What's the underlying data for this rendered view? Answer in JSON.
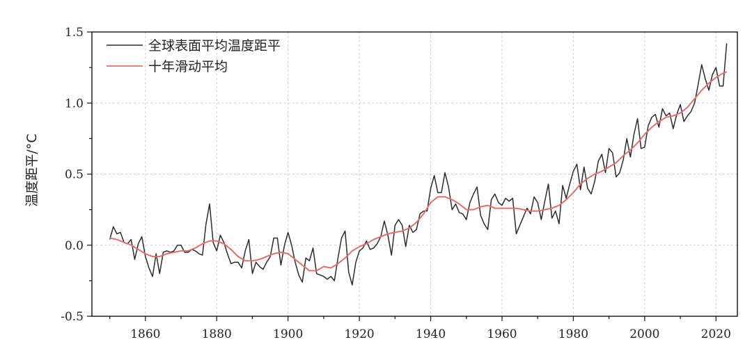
{
  "chart_data": {
    "type": "line",
    "title": "",
    "xlabel": "",
    "ylabel": "温度距平/°C",
    "xlim": [
      1845,
      2026
    ],
    "ylim": [
      -0.5,
      1.5
    ],
    "xticks": [
      1860,
      1880,
      1900,
      1920,
      1940,
      1960,
      1980,
      2000,
      2020
    ],
    "yticks": [
      -0.5,
      0.0,
      0.5,
      1.0,
      1.5
    ],
    "ytick_labels": [
      "-0.5",
      "0.0",
      "0.5",
      "1.0",
      "1.5"
    ],
    "grid": true,
    "legend_position": "top-left",
    "series": [
      {
        "name": "全球表面平均温度距平",
        "color": "#2b2b2b",
        "x": [
          1850,
          1851,
          1852,
          1853,
          1854,
          1855,
          1856,
          1857,
          1858,
          1859,
          1860,
          1861,
          1862,
          1863,
          1864,
          1865,
          1866,
          1867,
          1868,
          1869,
          1870,
          1871,
          1872,
          1873,
          1874,
          1875,
          1876,
          1877,
          1878,
          1879,
          1880,
          1881,
          1882,
          1883,
          1884,
          1885,
          1886,
          1887,
          1888,
          1889,
          1890,
          1891,
          1892,
          1893,
          1894,
          1895,
          1896,
          1897,
          1898,
          1899,
          1900,
          1901,
          1902,
          1903,
          1904,
          1905,
          1906,
          1907,
          1908,
          1909,
          1910,
          1911,
          1912,
          1913,
          1914,
          1915,
          1916,
          1917,
          1918,
          1919,
          1920,
          1921,
          1922,
          1923,
          1924,
          1925,
          1926,
          1927,
          1928,
          1929,
          1930,
          1931,
          1932,
          1933,
          1934,
          1935,
          1936,
          1937,
          1938,
          1939,
          1940,
          1941,
          1942,
          1943,
          1944,
          1945,
          1946,
          1947,
          1948,
          1949,
          1950,
          1951,
          1952,
          1953,
          1954,
          1955,
          1956,
          1957,
          1958,
          1959,
          1960,
          1961,
          1962,
          1963,
          1964,
          1965,
          1966,
          1967,
          1968,
          1969,
          1970,
          1971,
          1972,
          1973,
          1974,
          1975,
          1976,
          1977,
          1978,
          1979,
          1980,
          1981,
          1982,
          1983,
          1984,
          1985,
          1986,
          1987,
          1988,
          1989,
          1990,
          1991,
          1992,
          1993,
          1994,
          1995,
          1996,
          1997,
          1998,
          1999,
          2000,
          2001,
          2002,
          2003,
          2004,
          2005,
          2006,
          2007,
          2008,
          2009,
          2010,
          2011,
          2012,
          2013,
          2014,
          2015,
          2016,
          2017,
          2018,
          2019,
          2020,
          2021,
          2022,
          2023
        ],
        "values": [
          0.04,
          0.13,
          0.08,
          0.09,
          0.02,
          0.01,
          0.04,
          -0.1,
          0.01,
          0.06,
          -0.08,
          -0.16,
          -0.22,
          -0.06,
          -0.2,
          -0.05,
          -0.04,
          -0.05,
          -0.04,
          0.0,
          0.0,
          -0.05,
          -0.05,
          -0.03,
          -0.04,
          -0.06,
          -0.07,
          0.15,
          0.29,
          0.02,
          -0.04,
          0.07,
          0.02,
          -0.06,
          -0.13,
          -0.12,
          -0.12,
          -0.16,
          -0.04,
          0.04,
          -0.2,
          -0.12,
          -0.15,
          -0.17,
          -0.12,
          -0.08,
          0.05,
          0.05,
          -0.14,
          0.0,
          0.09,
          0.0,
          -0.12,
          -0.21,
          -0.26,
          -0.09,
          -0.11,
          -0.02,
          -0.2,
          -0.21,
          -0.22,
          -0.24,
          -0.22,
          -0.25,
          -0.09,
          0.05,
          0.1,
          -0.19,
          -0.28,
          -0.12,
          -0.04,
          -0.02,
          0.03,
          -0.03,
          -0.02,
          0.01,
          0.06,
          0.17,
          0.07,
          -0.07,
          0.14,
          0.18,
          0.14,
          -0.01,
          0.14,
          0.09,
          0.11,
          0.22,
          0.24,
          0.24,
          0.4,
          0.49,
          0.37,
          0.37,
          0.51,
          0.41,
          0.25,
          0.29,
          0.23,
          0.22,
          0.18,
          0.3,
          0.36,
          0.41,
          0.21,
          0.15,
          0.11,
          0.32,
          0.36,
          0.3,
          0.28,
          0.33,
          0.31,
          0.33,
          0.08,
          0.14,
          0.2,
          0.26,
          0.22,
          0.34,
          0.3,
          0.18,
          0.31,
          0.43,
          0.19,
          0.24,
          0.15,
          0.42,
          0.33,
          0.43,
          0.52,
          0.57,
          0.39,
          0.55,
          0.4,
          0.36,
          0.45,
          0.59,
          0.64,
          0.51,
          0.68,
          0.65,
          0.48,
          0.51,
          0.6,
          0.75,
          0.62,
          0.78,
          0.89,
          0.68,
          0.69,
          0.84,
          0.9,
          0.92,
          0.83,
          0.96,
          0.91,
          0.93,
          0.82,
          0.92,
          0.99,
          0.87,
          0.91,
          0.94,
          1.0,
          1.13,
          1.27,
          1.17,
          1.09,
          1.2,
          1.25,
          1.12,
          1.12,
          1.42
        ]
      },
      {
        "name": "十年滑动平均",
        "color": "#e0706a",
        "x": [
          1850,
          1852,
          1854,
          1856,
          1858,
          1860,
          1862,
          1864,
          1866,
          1868,
          1870,
          1872,
          1874,
          1876,
          1878,
          1880,
          1882,
          1884,
          1886,
          1888,
          1890,
          1892,
          1894,
          1896,
          1898,
          1900,
          1902,
          1904,
          1906,
          1908,
          1910,
          1912,
          1914,
          1916,
          1918,
          1920,
          1922,
          1924,
          1926,
          1928,
          1930,
          1932,
          1934,
          1936,
          1938,
          1940,
          1942,
          1944,
          1946,
          1948,
          1950,
          1952,
          1954,
          1956,
          1958,
          1960,
          1962,
          1964,
          1966,
          1968,
          1970,
          1972,
          1974,
          1976,
          1978,
          1980,
          1982,
          1984,
          1986,
          1988,
          1990,
          1992,
          1994,
          1996,
          1998,
          2000,
          2002,
          2004,
          2006,
          2008,
          2010,
          2012,
          2014,
          2016,
          2018,
          2020,
          2022,
          2023
        ],
        "values": [
          0.05,
          0.04,
          0.02,
          0.0,
          -0.03,
          -0.06,
          -0.08,
          -0.08,
          -0.06,
          -0.05,
          -0.04,
          -0.04,
          -0.02,
          0.01,
          0.03,
          0.03,
          0.01,
          -0.03,
          -0.08,
          -0.11,
          -0.11,
          -0.1,
          -0.08,
          -0.06,
          -0.05,
          -0.06,
          -0.1,
          -0.14,
          -0.18,
          -0.18,
          -0.15,
          -0.16,
          -0.13,
          -0.09,
          -0.04,
          -0.01,
          0.01,
          0.04,
          0.06,
          0.08,
          0.09,
          0.1,
          0.12,
          0.16,
          0.22,
          0.3,
          0.34,
          0.34,
          0.32,
          0.29,
          0.25,
          0.25,
          0.27,
          0.28,
          0.26,
          0.26,
          0.26,
          0.26,
          0.25,
          0.24,
          0.24,
          0.25,
          0.26,
          0.28,
          0.32,
          0.37,
          0.43,
          0.47,
          0.5,
          0.52,
          0.55,
          0.58,
          0.63,
          0.67,
          0.72,
          0.78,
          0.83,
          0.87,
          0.9,
          0.91,
          0.93,
          0.97,
          1.03,
          1.09,
          1.14,
          1.18,
          1.21,
          1.22
        ]
      }
    ]
  }
}
